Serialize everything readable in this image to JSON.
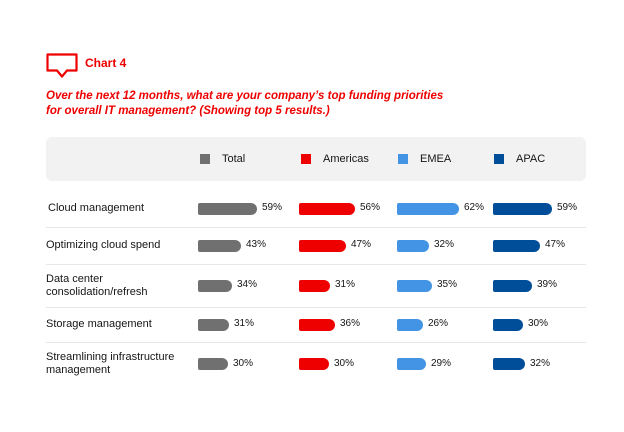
{
  "header": {
    "chart_label": "Chart 4",
    "question_lines": [
      "Over the next 12 months, what are your company’s top funding priorities",
      "for overall IT management? (Showing top 5 results.)"
    ],
    "accent_color": "#ee0000",
    "icon": "speech-bubble-icon"
  },
  "chart_data": {
    "type": "bar",
    "orientation": "horizontal",
    "categories": [
      "Cloud management",
      "Optimizing cloud spend",
      "Data center consolidation/refresh",
      "Storage management",
      "Streamlining infrastructure management"
    ],
    "category_lines": [
      [
        "Cloud management"
      ],
      [
        "Optimizing cloud spend"
      ],
      [
        "Data center",
        "consolidation/refresh"
      ],
      [
        "Storage management"
      ],
      [
        "Streamlining infrastructure",
        "management"
      ]
    ],
    "series": [
      {
        "name": "Total",
        "color": "#707070",
        "values": [
          59,
          43,
          34,
          31,
          30
        ]
      },
      {
        "name": "Americas",
        "color": "#ee0000",
        "values": [
          56,
          47,
          31,
          36,
          30
        ]
      },
      {
        "name": "EMEA",
        "color": "#4394e5",
        "values": [
          62,
          32,
          35,
          26,
          29
        ]
      },
      {
        "name": "APAC",
        "color": "#004d99",
        "values": [
          59,
          47,
          39,
          30,
          32
        ]
      }
    ],
    "value_suffix": "%",
    "legend_position": "top",
    "xlim": [
      0,
      62
    ]
  }
}
